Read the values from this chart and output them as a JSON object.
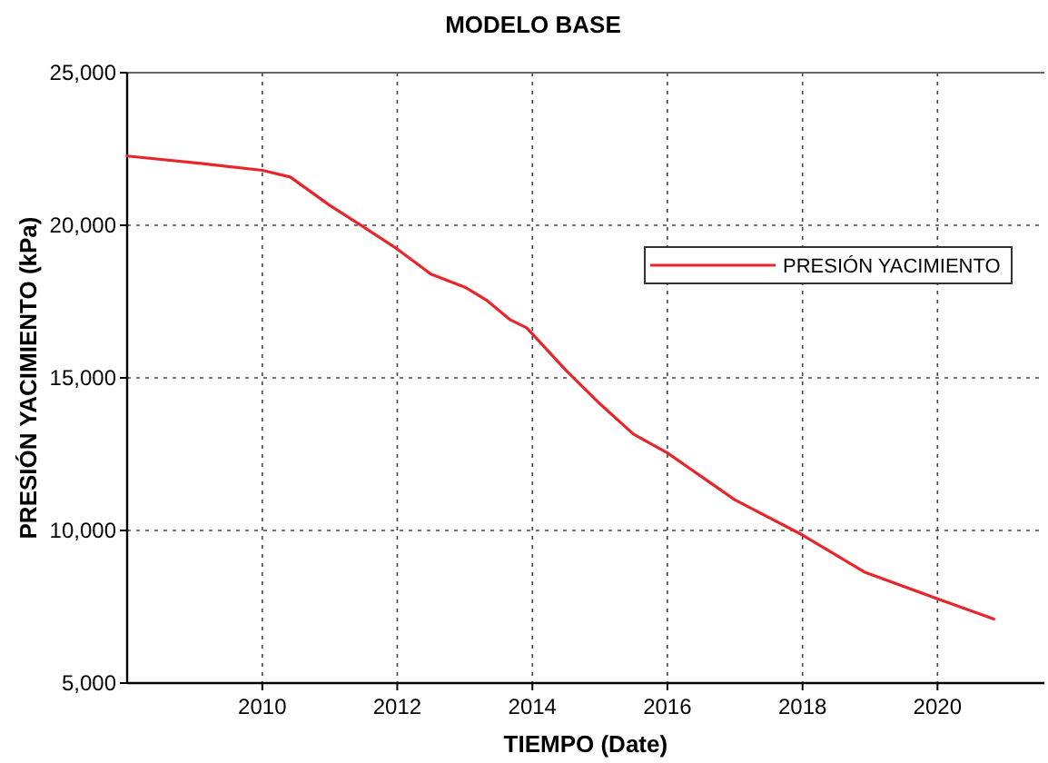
{
  "chart_data": {
    "type": "line",
    "title": "MODELO BASE",
    "xlabel": "TIEMPO (Date)",
    "ylabel": "PRESIÓN YACIMIENTO (kPa)",
    "x": [
      "2008-01",
      "2009-02",
      "2010-01",
      "2010-06",
      "2011-01",
      "2011-07",
      "2012-01",
      "2012-07",
      "2013-01",
      "2013-05",
      "2013-09",
      "2013-12",
      "2014-07",
      "2015-01",
      "2015-07",
      "2016-01",
      "2017-01",
      "2018-01",
      "2018-12",
      "2020-01",
      "2020-11"
    ],
    "series": [
      {
        "name": "PRESIÓN YACIMIENTO",
        "color": "#e8262a",
        "values": [
          22270,
          22030,
          21800,
          21580,
          20650,
          19950,
          19220,
          18400,
          17970,
          17530,
          16910,
          16640,
          15250,
          14150,
          13160,
          12540,
          11000,
          9850,
          8640,
          7760,
          7100
        ]
      }
    ],
    "xlim": [
      "2008-01",
      "2021-08"
    ],
    "xticks": [
      {
        "value": "2010-01",
        "label": "2010"
      },
      {
        "value": "2012-01",
        "label": "2012"
      },
      {
        "value": "2014-01",
        "label": "2014"
      },
      {
        "value": "2016-01",
        "label": "2016"
      },
      {
        "value": "2018-01",
        "label": "2018"
      },
      {
        "value": "2020-01",
        "label": "2020"
      }
    ],
    "ylim": [
      5000,
      25000
    ],
    "yticks": [
      {
        "value": 5000,
        "label": "5,000"
      },
      {
        "value": 10000,
        "label": "10,000"
      },
      {
        "value": 15000,
        "label": "15,000"
      },
      {
        "value": 20000,
        "label": "20,000"
      },
      {
        "value": 25000,
        "label": "25,000"
      }
    ],
    "grid": true,
    "legend": "top right",
    "line_style": "solid",
    "marker": "none"
  }
}
